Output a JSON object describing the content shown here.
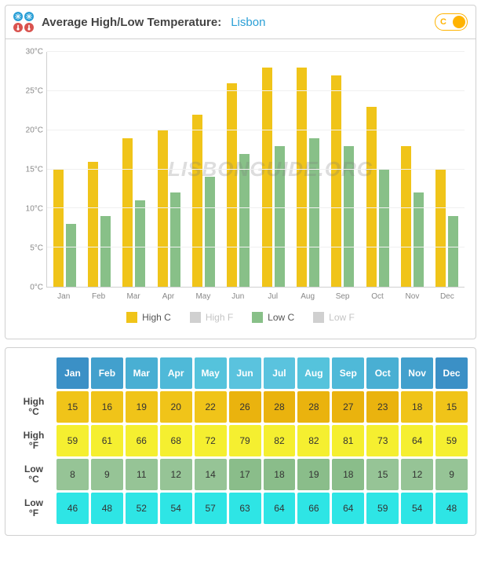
{
  "header": {
    "title_prefix": "Average High/Low Temperature:",
    "location": "Lisbon",
    "toggle_label": "C"
  },
  "chart": {
    "type": "bar",
    "watermark": "LISBONGUIDE.ORG",
    "y_axis": {
      "unit_suffix": "°C",
      "min": 0,
      "max": 30,
      "step": 5,
      "ticks": [
        30,
        25,
        20,
        15,
        10,
        5,
        0
      ]
    },
    "legend": [
      {
        "label": "High C",
        "color": "#f0c419",
        "active": true
      },
      {
        "label": "High F",
        "color": "#d0d0d0",
        "active": false
      },
      {
        "label": "Low C",
        "color": "#88c088",
        "active": true
      },
      {
        "label": "Low F",
        "color": "#d0d0d0",
        "active": false
      }
    ],
    "colors": {
      "high_bar": "#f0c419",
      "low_bar": "#88c088",
      "grid": "#f0f0f0",
      "axis": "#d0d0d0",
      "background": "#ffffff"
    },
    "months": [
      "Jan",
      "Feb",
      "Mar",
      "Apr",
      "May",
      "Jun",
      "Jul",
      "Aug",
      "Sep",
      "Oct",
      "Nov",
      "Dec"
    ],
    "high_c": [
      15,
      16,
      19,
      20,
      22,
      26,
      28,
      28,
      27,
      23,
      18,
      15
    ],
    "low_c": [
      8,
      9,
      11,
      12,
      14,
      17,
      18,
      19,
      18,
      15,
      12,
      9
    ]
  },
  "table": {
    "header_colors": [
      "#3b90c6",
      "#42a0cd",
      "#49afd3",
      "#4fb9d8",
      "#55c3dc",
      "#5ac3de",
      "#5ac3de",
      "#55c3dc",
      "#4fb9d8",
      "#49afd3",
      "#42a0cd",
      "#3b90c6"
    ],
    "months": [
      "Jan",
      "Feb",
      "Mar",
      "Apr",
      "May",
      "Jun",
      "Jul",
      "Aug",
      "Sep",
      "Oct",
      "Nov",
      "Dec"
    ],
    "rows": [
      {
        "label_line1": "High",
        "label_line2": "°C",
        "row_color_key": "high_c_row",
        "values": [
          15,
          16,
          19,
          20,
          22,
          26,
          28,
          28,
          27,
          23,
          18,
          15
        ],
        "cell_colors": [
          "#f0c419",
          "#f0c419",
          "#f0c419",
          "#f0c419",
          "#f0c419",
          "#eab30e",
          "#eab30e",
          "#eab30e",
          "#eab30e",
          "#eab30e",
          "#f0c419",
          "#f0c419"
        ]
      },
      {
        "label_line1": "High",
        "label_line2": "°F",
        "row_color_key": "high_f_row",
        "values": [
          59,
          61,
          66,
          68,
          72,
          79,
          82,
          82,
          81,
          73,
          64,
          59
        ],
        "cell_colors": [
          "#f5ef30",
          "#f5ef30",
          "#f5ef30",
          "#f5ef30",
          "#f5ef30",
          "#f5ef30",
          "#f5ef30",
          "#f5ef30",
          "#f5ef30",
          "#f5ef30",
          "#f5ef30",
          "#f5ef30"
        ]
      },
      {
        "label_line1": "Low",
        "label_line2": "°C",
        "row_color_key": "low_c_row",
        "values": [
          8,
          9,
          11,
          12,
          14,
          17,
          18,
          19,
          18,
          15,
          12,
          9
        ],
        "cell_colors": [
          "#96c496",
          "#96c496",
          "#96c496",
          "#96c496",
          "#96c496",
          "#8abd8a",
          "#8abd8a",
          "#8abd8a",
          "#8abd8a",
          "#96c496",
          "#96c496",
          "#96c496"
        ]
      },
      {
        "label_line1": "Low",
        "label_line2": "°F",
        "row_color_key": "low_f_row",
        "values": [
          46,
          48,
          52,
          54,
          57,
          63,
          64,
          66,
          64,
          59,
          54,
          48
        ],
        "cell_colors": [
          "#2ee5e5",
          "#2ee5e5",
          "#2ee5e5",
          "#2ee5e5",
          "#2ee5e5",
          "#2ee5e5",
          "#2ee5e5",
          "#2ee5e5",
          "#2ee5e5",
          "#2ee5e5",
          "#2ee5e5",
          "#2ee5e5"
        ]
      }
    ]
  }
}
